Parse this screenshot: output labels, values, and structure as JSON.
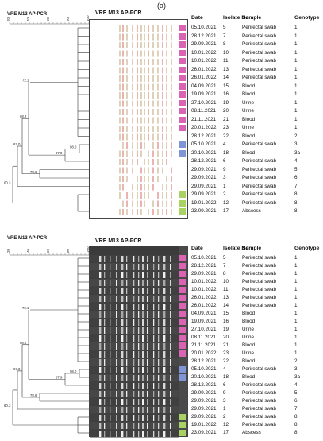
{
  "figure_label": "(a)",
  "colors": {
    "pink": "#d964b4",
    "blue": "#7f95d6",
    "green": "#a9d163",
    "band_red": "#d35757",
    "band_tan": "#b59a64"
  },
  "panels": [
    {
      "left_title": "VRE M13 AP-PCR",
      "mid_title": "VRE M13 AP-PCR",
      "scale_ticks": [
        "100",
        "80",
        "60",
        "40",
        "20"
      ],
      "node_labels": [
        "72.1",
        "98.0",
        "87.9",
        "68.2",
        "78.6",
        "67.0",
        "60.3"
      ]
    },
    {
      "left_title": "VRE M13 AP-PCR",
      "mid_title": "VRE M13 AP-PCR",
      "scale_ticks": [
        "100",
        "80",
        "60",
        "40",
        "20"
      ],
      "node_labels": [
        "72.1",
        "98.0",
        "87.9",
        "68.2",
        "78.6",
        "67.0",
        "60.3"
      ]
    }
  ],
  "table": {
    "headers": {
      "date": "Date",
      "isolate": "Isolate No",
      "sample": "Sample",
      "genotype": "Genotype"
    },
    "rows": [
      {
        "date": "05.10.2021",
        "isolate": "5",
        "sample": "Perirectal swab",
        "genotype": "1",
        "color": "pink"
      },
      {
        "date": "28.12.2021",
        "isolate": "7",
        "sample": "Perirectal swab",
        "genotype": "1",
        "color": "pink"
      },
      {
        "date": "29.09.2021",
        "isolate": "8",
        "sample": "Perirectal swab",
        "genotype": "1",
        "color": "pink"
      },
      {
        "date": "10.01.2022",
        "isolate": "10",
        "sample": "Perirectal swab",
        "genotype": "1",
        "color": "pink"
      },
      {
        "date": "10.01.2022",
        "isolate": "11",
        "sample": "Perirectal swab",
        "genotype": "1",
        "color": "pink"
      },
      {
        "date": "26.01.2022",
        "isolate": "13",
        "sample": "Perirectal swab",
        "genotype": "1",
        "color": "pink"
      },
      {
        "date": "26.01.2022",
        "isolate": "14",
        "sample": "Perirectal swab",
        "genotype": "1",
        "color": "pink"
      },
      {
        "date": "04.09.2021",
        "isolate": "15",
        "sample": "Blood",
        "genotype": "1",
        "color": "pink"
      },
      {
        "date": "19.09.2021",
        "isolate": "16",
        "sample": "Blood",
        "genotype": "1",
        "color": "pink"
      },
      {
        "date": "27.10.2021",
        "isolate": "19",
        "sample": "Urine",
        "genotype": "1",
        "color": "pink"
      },
      {
        "date": "08.11.2021",
        "isolate": "20",
        "sample": "Urine",
        "genotype": "1",
        "color": "pink"
      },
      {
        "date": "21.11.2021",
        "isolate": "21",
        "sample": "Blood",
        "genotype": "1",
        "color": "pink"
      },
      {
        "date": "20.01.2022",
        "isolate": "23",
        "sample": "Urine",
        "genotype": "1",
        "color": "pink"
      },
      {
        "date": "28.12.2021",
        "isolate": "22",
        "sample": "Blood",
        "genotype": "2",
        "color": "none"
      },
      {
        "date": "05.10.2021",
        "isolate": "4",
        "sample": "Perirectal swab",
        "genotype": "3",
        "color": "blue"
      },
      {
        "date": "20.10.2021",
        "isolate": "18",
        "sample": "Blood",
        "genotype": "3a",
        "color": "blue"
      },
      {
        "date": "28.12.2021",
        "isolate": "6",
        "sample": "Perirectal swab",
        "genotype": "4",
        "color": "none"
      },
      {
        "date": "29.09.2021",
        "isolate": "9",
        "sample": "Perirectal swab",
        "genotype": "5",
        "color": "none"
      },
      {
        "date": "29.09.2021",
        "isolate": "3",
        "sample": "Perirectal swab",
        "genotype": "6",
        "color": "none"
      },
      {
        "date": "29.09.2021",
        "isolate": "1",
        "sample": "Perirectal swab",
        "genotype": "7",
        "color": "none"
      },
      {
        "date": "29.09.2021",
        "isolate": "2",
        "sample": "Perirectal swab",
        "genotype": "8",
        "color": "green"
      },
      {
        "date": "19.01.2022",
        "isolate": "12",
        "sample": "Perirectal swab",
        "genotype": "8",
        "color": "green"
      },
      {
        "date": "23.09.2021",
        "isolate": "17",
        "sample": "Abscess",
        "genotype": "8",
        "color": "green"
      }
    ]
  }
}
